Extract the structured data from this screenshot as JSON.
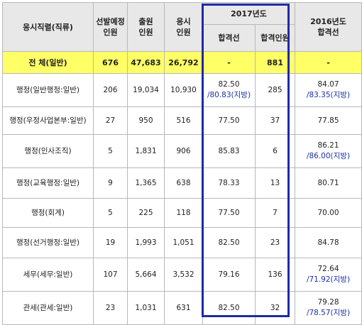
{
  "header": {
    "position": "응시직렬(직류)",
    "selected": [
      "선발예정",
      "인원"
    ],
    "applicants": [
      "출원",
      "인원"
    ],
    "examinees": [
      "응시",
      "인원"
    ],
    "y2017": "2017년도",
    "cutoff": "합격선",
    "passers": "합격인원",
    "y2016": [
      "2016년도",
      "합격선"
    ]
  },
  "total": {
    "label": "전 체(일반)",
    "selected": "676",
    "applicants": "47,683",
    "examinees": "26,792",
    "cutoff": "-",
    "passers": "881",
    "cutoff2016": "-"
  },
  "rows": [
    {
      "label": "행정(일반행정:일반)",
      "selected": "206",
      "applicants": "19,034",
      "examinees": "10,930",
      "cutoff": "82.50",
      "cutoff_local": "/80.83(지방)",
      "passers": "285",
      "cutoff2016": "84.07",
      "cutoff2016_local": "/83.35(지방)"
    },
    {
      "label": "행정(우정사업본부:일반)",
      "selected": "27",
      "applicants": "950",
      "examinees": "516",
      "cutoff": "77.50",
      "cutoff_local": "",
      "passers": "37",
      "cutoff2016": "77.85",
      "cutoff2016_local": ""
    },
    {
      "label": "행정(인사조직)",
      "selected": "5",
      "applicants": "1,831",
      "examinees": "906",
      "cutoff": "85.83",
      "cutoff_local": "",
      "passers": "6",
      "cutoff2016": "86.21",
      "cutoff2016_local": "/86.00(지방)"
    },
    {
      "label": "행정(교육행정:일반)",
      "selected": "9",
      "applicants": "1,365",
      "examinees": "638",
      "cutoff": "78.33",
      "cutoff_local": "",
      "passers": "13",
      "cutoff2016": "80.71",
      "cutoff2016_local": ""
    },
    {
      "label": "행정(회계)",
      "selected": "5",
      "applicants": "225",
      "examinees": "118",
      "cutoff": "77.50",
      "cutoff_local": "",
      "passers": "7",
      "cutoff2016": "70.00",
      "cutoff2016_local": ""
    },
    {
      "label": "행정(선거행정:일반)",
      "selected": "19",
      "applicants": "1,993",
      "examinees": "1,051",
      "cutoff": "82.50",
      "cutoff_local": "",
      "passers": "23",
      "cutoff2016": "84.78",
      "cutoff2016_local": ""
    },
    {
      "label": "세무(세무:일반)",
      "selected": "107",
      "applicants": "5,664",
      "examinees": "3,532",
      "cutoff": "79.16",
      "cutoff_local": "",
      "passers": "136",
      "cutoff2016": "72.64",
      "cutoff2016_local": "/71.92(지방)"
    },
    {
      "label": "관세(관세:일반)",
      "selected": "23",
      "applicants": "1,031",
      "examinees": "631",
      "cutoff": "82.50",
      "cutoff_local": "",
      "passers": "32",
      "cutoff2016": "79.28",
      "cutoff2016_local": "/78.57(지방)"
    }
  ]
}
